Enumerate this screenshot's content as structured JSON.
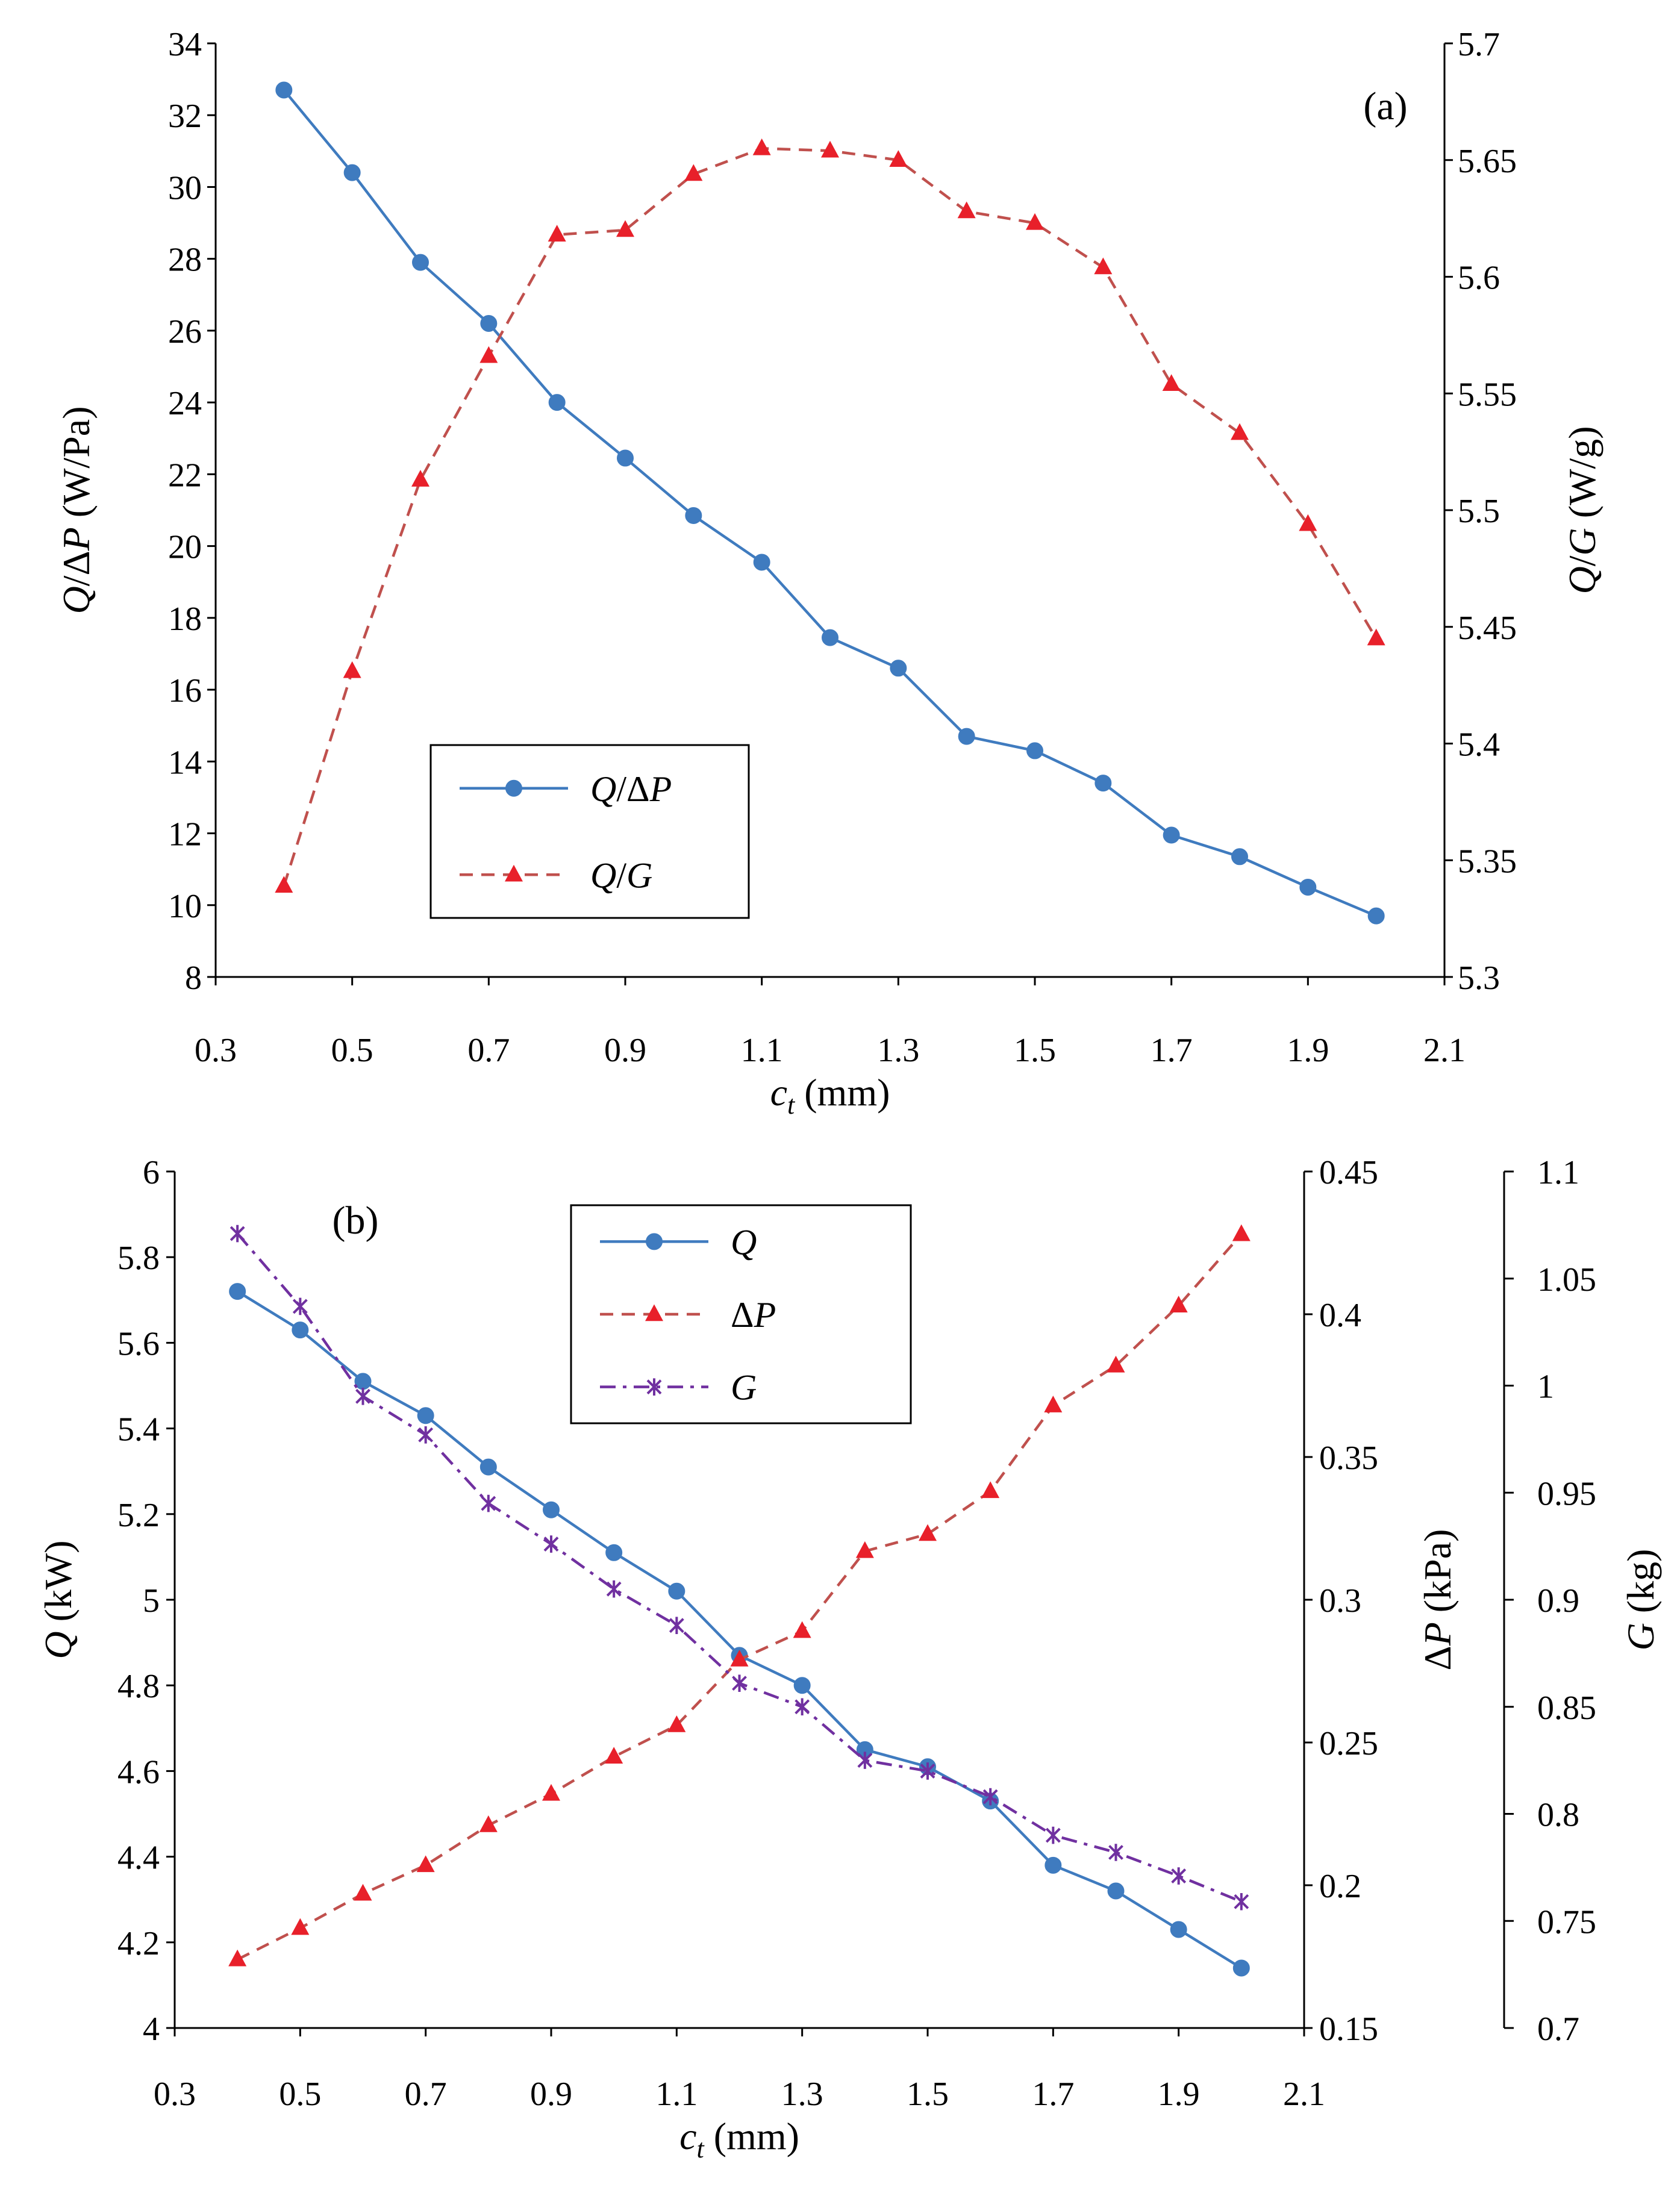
{
  "chart_data": [
    {
      "type": "line",
      "panel": "(a)",
      "x": [
        0.4,
        0.5,
        0.6,
        0.7,
        0.8,
        0.9,
        1.0,
        1.1,
        1.2,
        1.3,
        1.4,
        1.5,
        1.6,
        1.7,
        1.8,
        1.9,
        2.0
      ],
      "xlim": [
        0.3,
        2.1
      ],
      "xticks": [
        "0.3",
        "0.5",
        "0.7",
        "0.9",
        "1.1",
        "1.3",
        "1.5",
        "1.7",
        "1.9",
        "2.1"
      ],
      "xlabel_var": "c",
      "xlabel_sub": "t",
      "xlabel_unit": " (mm)",
      "axes": {
        "left": {
          "label_var": "Q",
          "label_mid": "/Δ",
          "label_var2": "P",
          "label_unit": " (W/Pa)",
          "lim": [
            8,
            34
          ],
          "ticks": [
            "8",
            "10",
            "12",
            "14",
            "16",
            "18",
            "20",
            "22",
            "24",
            "26",
            "28",
            "30",
            "32",
            "34"
          ]
        },
        "right": {
          "label_var": "Q",
          "label_mid": "/",
          "label_var2": "G",
          "label_unit": " (W/g)",
          "lim": [
            5.3,
            5.7
          ],
          "ticks": [
            "5.3",
            "5.35",
            "5.4",
            "5.45",
            "5.5",
            "5.55",
            "5.6",
            "5.65",
            "5.7"
          ]
        }
      },
      "series": [
        {
          "name": "Q/ΔP",
          "legend_var": "Q",
          "legend_mid": "/Δ",
          "legend_var2": "P",
          "axis": "left",
          "style": "solid",
          "marker": "circle",
          "color": "#3f7bbf",
          "values": [
            32.7,
            30.4,
            27.9,
            26.2,
            24.0,
            22.45,
            20.85,
            19.55,
            17.45,
            16.6,
            14.7,
            14.3,
            13.4,
            11.95,
            11.35,
            10.5,
            9.7
          ]
        },
        {
          "name": "Q/G",
          "legend_var": "Q",
          "legend_mid": "/",
          "legend_var2": "G",
          "axis": "right",
          "style": "dashed",
          "marker": "triangle",
          "color": "#c0504d",
          "values": [
            5.339,
            5.431,
            5.513,
            5.566,
            5.618,
            5.62,
            5.644,
            5.655,
            5.654,
            5.65,
            5.628,
            5.623,
            5.604,
            5.554,
            5.533,
            5.494,
            5.445
          ]
        }
      ]
    },
    {
      "type": "line",
      "panel": "(b)",
      "x": [
        0.4,
        0.5,
        0.6,
        0.7,
        0.8,
        0.9,
        1.0,
        1.1,
        1.2,
        1.3,
        1.4,
        1.5,
        1.6,
        1.7,
        1.8,
        1.9,
        2.0
      ],
      "xlim": [
        0.3,
        2.1
      ],
      "xticks": [
        "0.3",
        "0.5",
        "0.7",
        "0.9",
        "1.1",
        "1.3",
        "1.5",
        "1.7",
        "1.9",
        "2.1"
      ],
      "xlabel_var": "c",
      "xlabel_sub": "t",
      "xlabel_unit": " (mm)",
      "axes": {
        "left": {
          "label_var": "Q",
          "label_unit": " (kW)",
          "lim": [
            4,
            6
          ],
          "ticks": [
            "4",
            "4.2",
            "4.4",
            "4.6",
            "4.8",
            "5",
            "5.2",
            "5.4",
            "5.6",
            "5.8",
            "6"
          ]
        },
        "right": {
          "label_pre": "Δ",
          "label_var": "P",
          "label_unit": " (kPa)",
          "lim": [
            0.15,
            0.45
          ],
          "ticks": [
            "0.15",
            "0.2",
            "0.25",
            "0.3",
            "0.35",
            "0.4",
            "0.45"
          ]
        },
        "right2": {
          "label_var": "G",
          "label_unit": " (kg)",
          "lim": [
            0.7,
            1.1
          ],
          "ticks": [
            "0.7",
            "0.75",
            "0.8",
            "0.85",
            "0.9",
            "0.95",
            "1",
            "1.05",
            "1.1"
          ]
        }
      },
      "series": [
        {
          "name": "Q",
          "legend_var": "Q",
          "axis": "left",
          "style": "solid",
          "marker": "circle",
          "color": "#3f7bbf",
          "values": [
            5.72,
            5.63,
            5.51,
            5.43,
            5.31,
            5.21,
            5.11,
            5.02,
            4.87,
            4.8,
            4.65,
            4.61,
            4.53,
            4.38,
            4.32,
            4.23,
            4.14
          ]
        },
        {
          "name": "ΔP",
          "legend_pre": "Δ",
          "legend_var": "P",
          "axis": "right",
          "style": "dashed",
          "marker": "triangle",
          "color": "#c0504d",
          "values": [
            0.174,
            0.185,
            0.197,
            0.207,
            0.221,
            0.232,
            0.245,
            0.256,
            0.279,
            0.289,
            0.317,
            0.323,
            0.338,
            0.368,
            0.382,
            0.403,
            0.428
          ]
        },
        {
          "name": "G",
          "legend_var": "G",
          "axis": "right2",
          "style": "dashdot",
          "marker": "star",
          "color": "#7030a0",
          "values": [
            1.071,
            1.037,
            0.995,
            0.977,
            0.945,
            0.926,
            0.905,
            0.888,
            0.861,
            0.85,
            0.825,
            0.82,
            0.808,
            0.79,
            0.782,
            0.771,
            0.759
          ]
        }
      ]
    }
  ]
}
